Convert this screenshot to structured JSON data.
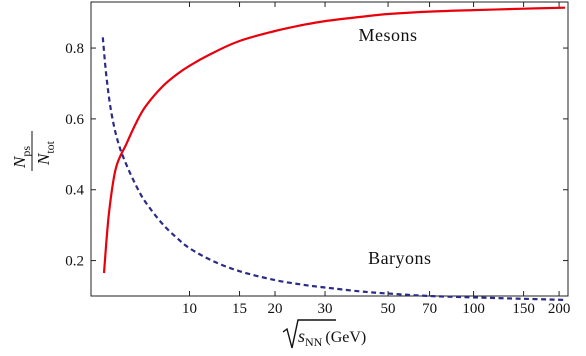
{
  "chart_data": {
    "type": "line",
    "title": "",
    "x_scale": "log",
    "xlim": [
      4.5,
      215
    ],
    "ylim": [
      0.1,
      0.93
    ],
    "x_ticks": [
      {
        "value": 10,
        "label": "10"
      },
      {
        "value": 15,
        "label": "15"
      },
      {
        "value": 20,
        "label": "20"
      },
      {
        "value": 30,
        "label": "30"
      },
      {
        "value": 50,
        "label": "50"
      },
      {
        "value": 70,
        "label": "70"
      },
      {
        "value": 100,
        "label": "100"
      },
      {
        "value": 150,
        "label": "150"
      },
      {
        "value": 200,
        "label": "200"
      }
    ],
    "y_ticks": [
      {
        "value": 0.2,
        "label": "0.2"
      },
      {
        "value": 0.4,
        "label": "0.4"
      },
      {
        "value": 0.6,
        "label": "0.6"
      },
      {
        "value": 0.8,
        "label": "0.8"
      }
    ],
    "xlabel": {
      "base": "s",
      "sub": "NN",
      "unit": "(GeV)"
    },
    "ylabel": {
      "num": "N",
      "num_sub": "ps",
      "den": "N",
      "den_sub": "tot"
    },
    "grid": false,
    "series": [
      {
        "name": "Mesons",
        "color": "#e8000b",
        "dash": "solid",
        "x": [
          5.0,
          5.2,
          5.5,
          6.0,
          6.5,
          7,
          8,
          9,
          10,
          12,
          15,
          20,
          25,
          30,
          40,
          50,
          70,
          100,
          150,
          210
        ],
        "y": [
          0.165,
          0.33,
          0.46,
          0.53,
          0.59,
          0.635,
          0.69,
          0.725,
          0.75,
          0.785,
          0.82,
          0.848,
          0.865,
          0.876,
          0.888,
          0.896,
          0.903,
          0.907,
          0.911,
          0.914
        ]
      },
      {
        "name": "Baryons",
        "color": "#2b2b88",
        "dash": "dashed",
        "x": [
          4.95,
          5.1,
          5.3,
          5.6,
          6.0,
          6.5,
          7,
          8,
          9,
          10,
          12,
          15,
          20,
          25,
          30,
          40,
          50,
          70,
          100,
          150,
          210
        ],
        "y": [
          0.83,
          0.72,
          0.62,
          0.535,
          0.47,
          0.41,
          0.365,
          0.305,
          0.265,
          0.235,
          0.2,
          0.17,
          0.145,
          0.132,
          0.124,
          0.113,
          0.107,
          0.1,
          0.096,
          0.092,
          0.089
        ]
      }
    ],
    "annotations": [
      {
        "text": "Mesons",
        "x": 50,
        "y": 0.82
      },
      {
        "text": "Baryons",
        "x": 55,
        "y": 0.19
      }
    ]
  }
}
